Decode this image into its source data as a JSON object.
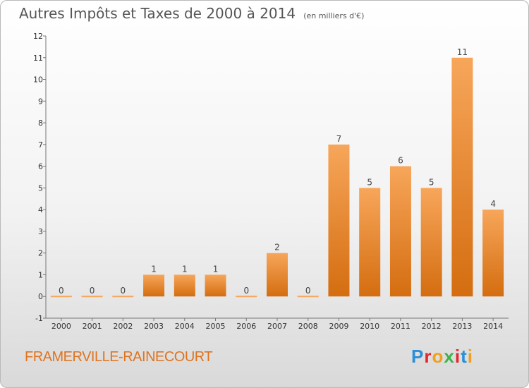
{
  "header": {
    "title": "Autres Impôts et Taxes de 2000 à 2014",
    "subtitle": "(en milliers d'€)"
  },
  "commune": "FRAMERVILLE-RAINECOURT",
  "logo": {
    "text": "Proxiti",
    "letter_colors": [
      "#2a8fd8",
      "#e2262b",
      "#f0a020",
      "#3db34a",
      "#e2262b",
      "#2a8fd8",
      "#f0a020"
    ]
  },
  "chart_data": {
    "type": "bar",
    "title": "Autres Impôts et Taxes de 2000 à 2014",
    "subtitle": "(en milliers d'€)",
    "xlabel": "",
    "ylabel": "",
    "categories": [
      "2000",
      "2001",
      "2002",
      "2003",
      "2004",
      "2005",
      "2006",
      "2007",
      "2008",
      "2009",
      "2010",
      "2011",
      "2012",
      "2013",
      "2014"
    ],
    "values": [
      0,
      0,
      0,
      1,
      1,
      1,
      0,
      2,
      0,
      7,
      5,
      6,
      5,
      11,
      4
    ],
    "ylim": [
      -1,
      12
    ],
    "yticks": [
      -1,
      0,
      1,
      2,
      3,
      4,
      5,
      6,
      7,
      8,
      9,
      10,
      11,
      12
    ],
    "grid": false,
    "legend": "none",
    "colors": {
      "bar_light": "#f7a65a",
      "bar_dark": "#d46d10",
      "axis": "#777777"
    }
  }
}
